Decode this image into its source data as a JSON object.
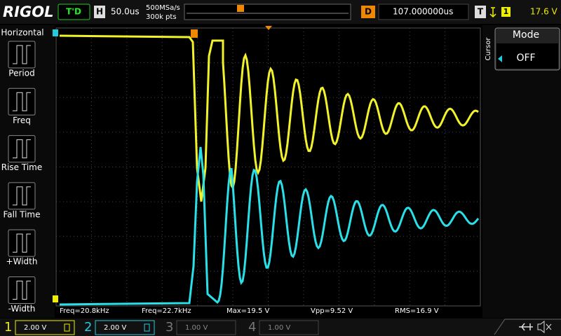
{
  "header": {
    "brand": "RIGOL",
    "status": "T'D",
    "timebase_label": "H",
    "timebase": "50.0us",
    "sample_rate": "500MSa/s",
    "memory_depth": "300k pts",
    "delay_label": "D",
    "delay": "107.000000us",
    "trigger_label": "T",
    "trigger_source": "1",
    "trigger_level": "17.6 V"
  },
  "left_menu": {
    "title": "Horizontal",
    "items": [
      "Period",
      "Freq",
      "Rise Time",
      "Fall Time",
      "+Width",
      "-Width"
    ]
  },
  "right_menu": {
    "side_label": "Cursor",
    "title": "Mode",
    "value": "OFF"
  },
  "measurements": [
    "Freq=20.8kHz",
    "Freq=22.7kHz",
    "Max=19.5 V",
    "Vpp=9.52 V",
    "RMS=16.9 V"
  ],
  "channels": [
    {
      "number": "1",
      "scale": "2.00 V"
    },
    {
      "number": "2",
      "scale": "2.00 V"
    },
    {
      "number": "3",
      "scale": "1.00 V"
    },
    {
      "number": "4",
      "scale": "1.00 V"
    }
  ]
}
